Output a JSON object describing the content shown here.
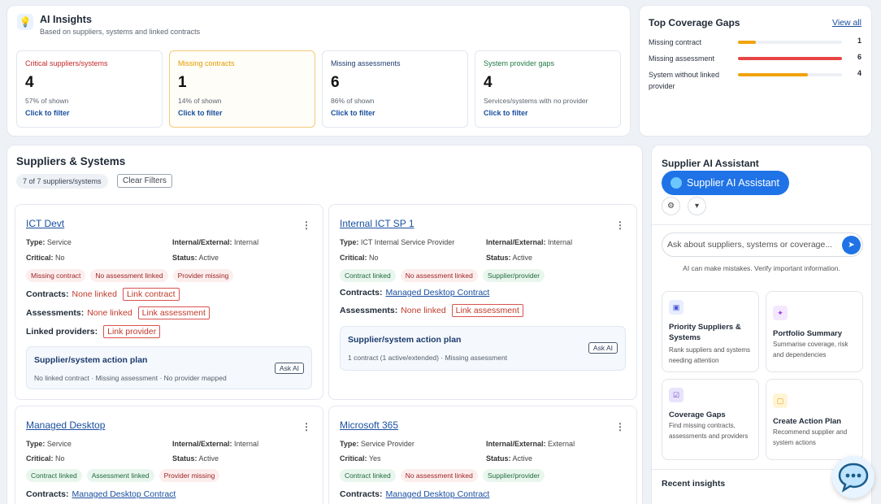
{
  "insights": {
    "title": "AI Insights",
    "subtitle": "Based on suppliers, systems and linked contracts",
    "metrics": [
      {
        "label": "Critical suppliers/systems",
        "value": "4",
        "note": "57% of shown",
        "link": "Click to filter",
        "color": "#c62828"
      },
      {
        "label": "Missing contracts",
        "value": "1",
        "note": "14% of shown",
        "link": "Click to filter",
        "color": "#e39b00"
      },
      {
        "label": "Missing assessments",
        "value": "6",
        "note": "86% of shown",
        "link": "Click to filter",
        "color": "#1c3b6e"
      },
      {
        "label": "System provider gaps",
        "value": "4",
        "note": "Services/systems with no provider",
        "link": "Click to filter",
        "color": "#1f7a45"
      }
    ]
  },
  "gaps": {
    "title": "Top Coverage Gaps",
    "view_all": "View all",
    "rows": [
      {
        "label": "Missing contract",
        "value": "1",
        "fraction": 0.17,
        "color": "#f0a30a"
      },
      {
        "label": "Missing assessment",
        "value": "6",
        "fraction": 1.0,
        "color": "#e84545"
      },
      {
        "label": "System without linked provider",
        "value": "4",
        "fraction": 0.67,
        "color": "#f0a30a"
      }
    ]
  },
  "suppliers": {
    "title": "Suppliers & Systems",
    "count": "7 of 7 suppliers/systems",
    "clear": "Clear Filters",
    "labels": {
      "type": "Type:",
      "internal_external": "Internal/External:",
      "critical": "Critical:",
      "status": "Status:",
      "contracts": "Contracts:",
      "assessments": "Assessments:",
      "linked_providers": "Linked providers:",
      "none_linked": "None linked",
      "link_contract": "Link contract",
      "link_assessment": "Link assessment",
      "link_provider": "Link provider",
      "plan_title": "Supplier/system action plan",
      "ask_ai": "Ask AI",
      "menu": "⋮"
    },
    "cards": [
      {
        "name": "ICT Devt",
        "type": "Service",
        "internal_external": "Internal",
        "critical": "No",
        "status": "Active",
        "chips": [
          "Missing contract",
          "No assessment linked",
          "Provider missing"
        ],
        "plan_summary": "No linked contract · Missing assessment · No provider mapped"
      },
      {
        "name": "Internal ICT SP 1",
        "type": "ICT Internal Service Provider",
        "internal_external": "Internal",
        "critical": "No",
        "status": "Active",
        "chips": [
          "Contract linked",
          "No assessment linked",
          "Supplier/provider"
        ],
        "contract_link": "Managed Desktop Contract",
        "plan_summary": "1 contract (1 active/extended) · Missing assessment"
      },
      {
        "name": "Managed Desktop",
        "type": "Service",
        "internal_external": "Internal",
        "critical": "No",
        "status": "Active",
        "chips": [
          "Contract linked",
          "Assessment linked",
          "Provider missing"
        ],
        "contract_link": "Managed Desktop Contract"
      },
      {
        "name": "Microsoft 365",
        "type": "Service Provider",
        "internal_external": "External",
        "critical": "Yes",
        "status": "Active",
        "chips": [
          "Contract linked",
          "No assessment linked",
          "Supplier/provider"
        ],
        "contract_link": "Managed Desktop Contract"
      }
    ]
  },
  "assistant": {
    "title": "Supplier AI Assistant",
    "button": "Supplier AI Assistant",
    "input_placeholder": "Ask about suppliers, systems or coverage...",
    "disclaimer": "AI can make mistakes. Verify important information.",
    "tiles": [
      {
        "title": "Priority Suppliers & Systems",
        "desc": "Rank suppliers and systems needing attention",
        "icon": "priority-icon"
      },
      {
        "title": "Portfolio Summary",
        "desc": "Summarise coverage, risk and dependencies",
        "icon": "sparkle-icon"
      },
      {
        "title": "Coverage Gaps",
        "desc": "Find missing contracts, assessments and providers",
        "icon": "checkbox-icon"
      },
      {
        "title": "Create Action Plan",
        "desc": "Recommend supplier and system actions",
        "icon": "plan-icon"
      }
    ],
    "recent": "Recent insights"
  }
}
